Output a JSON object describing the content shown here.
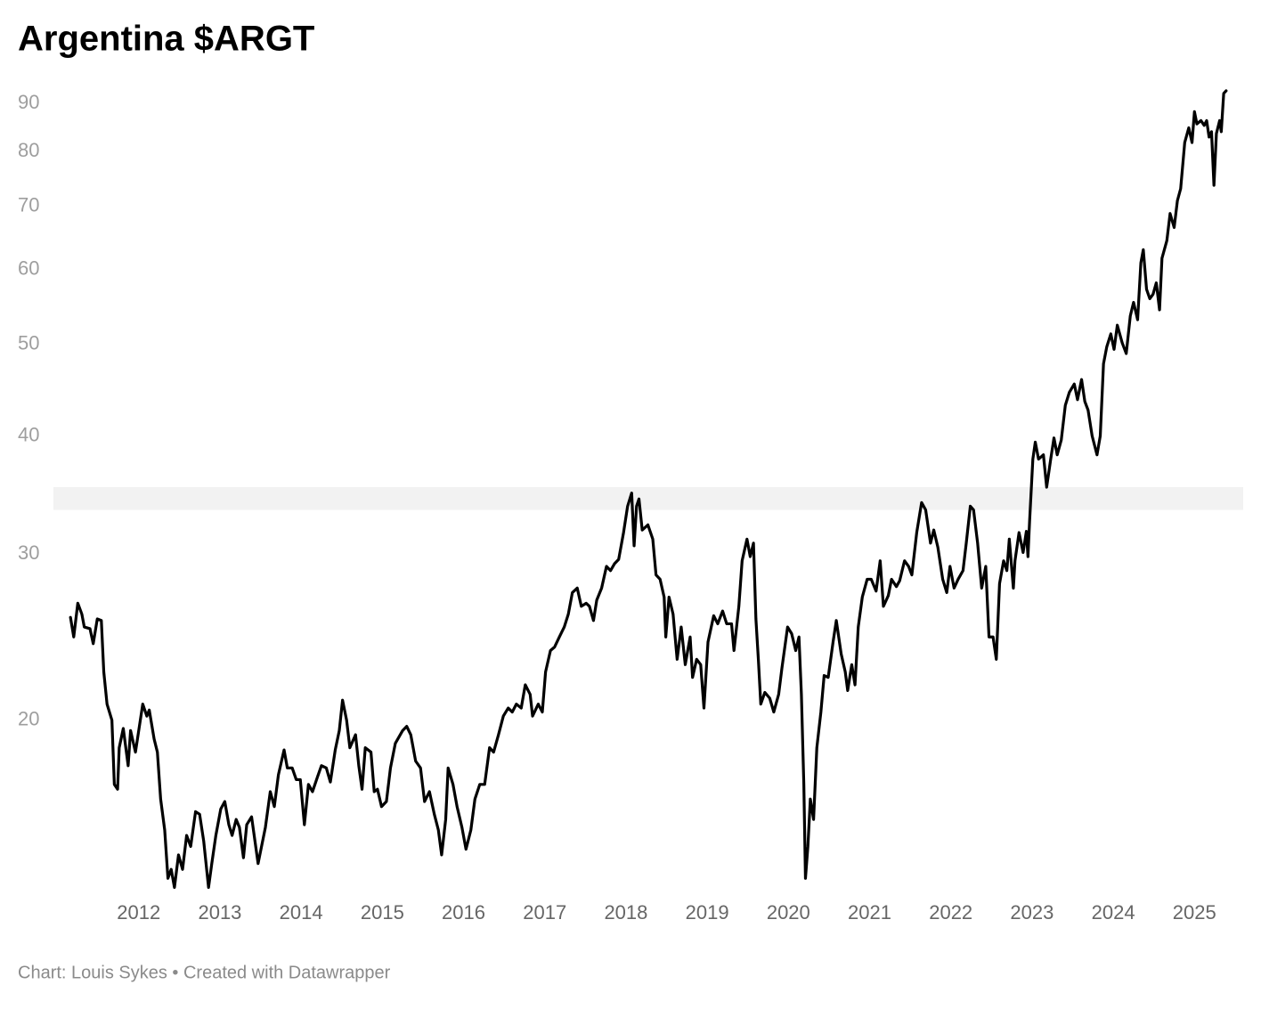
{
  "chart_data": {
    "type": "line",
    "title": "Argentina $ARGT",
    "source": "Chart: Louis Sykes • Created with Datawrapper",
    "yscale": "log",
    "grid": false,
    "highlight_range": [
      33.4,
      35.3
    ],
    "highlight_color": "#f2f2f2",
    "xlim": [
      2010.95,
      2025.6
    ],
    "xticks": [
      2012,
      2013,
      2014,
      2015,
      2016,
      2017,
      2018,
      2019,
      2020,
      2021,
      2022,
      2023,
      2024,
      2025
    ],
    "ylim": [
      13.2,
      93.2
    ],
    "yticks": [
      20,
      30,
      40,
      50,
      60,
      70,
      80,
      90
    ],
    "x": [
      2011.16,
      2011.2,
      2011.25,
      2011.3,
      2011.33,
      2011.4,
      2011.44,
      2011.49,
      2011.54,
      2011.57,
      2011.61,
      2011.67,
      2011.7,
      2011.74,
      2011.76,
      2011.81,
      2011.87,
      2011.9,
      2011.96,
      2012.05,
      2012.1,
      2012.13,
      2012.19,
      2012.23,
      2012.27,
      2012.32,
      2012.36,
      2012.4,
      2012.44,
      2012.49,
      2012.54,
      2012.59,
      2012.64,
      2012.7,
      2012.75,
      2012.8,
      2012.86,
      2012.9,
      2012.95,
      2013.01,
      2013.06,
      2013.11,
      2013.15,
      2013.2,
      2013.24,
      2013.29,
      2013.33,
      2013.39,
      2013.47,
      2013.56,
      2013.62,
      2013.67,
      2013.72,
      2013.79,
      2013.83,
      2013.89,
      2013.94,
      2013.99,
      2014.04,
      2014.09,
      2014.14,
      2014.2,
      2014.25,
      2014.31,
      2014.36,
      2014.42,
      2014.47,
      2014.51,
      2014.56,
      2014.6,
      2014.67,
      2014.71,
      2014.75,
      2014.79,
      2014.86,
      2014.9,
      2014.94,
      2014.99,
      2015.05,
      2015.1,
      2015.16,
      2015.25,
      2015.3,
      2015.35,
      2015.41,
      2015.47,
      2015.52,
      2015.58,
      2015.64,
      2015.69,
      2015.73,
      2015.78,
      2015.81,
      2015.87,
      2015.92,
      2015.98,
      2016.03,
      2016.09,
      2016.14,
      2016.2,
      2016.26,
      2016.32,
      2016.37,
      2016.43,
      2016.49,
      2016.55,
      2016.6,
      2016.65,
      2016.71,
      2016.76,
      2016.82,
      2016.85,
      2016.92,
      2016.97,
      2017.01,
      2017.07,
      2017.12,
      2017.18,
      2017.24,
      2017.29,
      2017.34,
      2017.4,
      2017.45,
      2017.51,
      2017.55,
      2017.6,
      2017.64,
      2017.7,
      2017.76,
      2017.81,
      2017.86,
      2017.91,
      2017.97,
      2018.02,
      2018.07,
      2018.1,
      2018.13,
      2018.16,
      2018.2,
      2018.27,
      2018.33,
      2018.37,
      2018.42,
      2018.47,
      2018.49,
      2018.53,
      2018.58,
      2018.63,
      2018.68,
      2018.73,
      2018.79,
      2018.82,
      2018.87,
      2018.92,
      2018.96,
      2019.01,
      2019.08,
      2019.13,
      2019.19,
      2019.24,
      2019.3,
      2019.33,
      2019.39,
      2019.43,
      2019.49,
      2019.53,
      2019.57,
      2019.6,
      2019.63,
      2019.66,
      2019.71,
      2019.77,
      2019.82,
      2019.88,
      2019.92,
      2019.99,
      2020.04,
      2020.09,
      2020.13,
      2020.16,
      2020.19,
      2020.21,
      2020.24,
      2020.27,
      2020.31,
      2020.35,
      2020.4,
      2020.44,
      2020.49,
      2020.55,
      2020.59,
      2020.65,
      2020.7,
      2020.73,
      2020.78,
      2020.82,
      2020.86,
      2020.91,
      2020.97,
      2021.02,
      2021.08,
      2021.13,
      2021.17,
      2021.23,
      2021.27,
      2021.33,
      2021.37,
      2021.43,
      2021.48,
      2021.52,
      2021.58,
      2021.64,
      2021.69,
      2021.75,
      2021.79,
      2021.84,
      2021.9,
      2021.95,
      2021.99,
      2022.04,
      2022.09,
      2022.15,
      2022.19,
      2022.24,
      2022.28,
      2022.33,
      2022.38,
      2022.43,
      2022.47,
      2022.52,
      2022.56,
      2022.6,
      2022.65,
      2022.69,
      2022.72,
      2022.77,
      2022.79,
      2022.84,
      2022.89,
      2022.93,
      2022.95,
      2022.97,
      2023.01,
      2023.04,
      2023.08,
      2023.14,
      2023.18,
      2023.23,
      2023.27,
      2023.31,
      2023.36,
      2023.41,
      2023.46,
      2023.52,
      2023.56,
      2023.61,
      2023.65,
      2023.69,
      2023.74,
      2023.8,
      2023.84,
      2023.88,
      2023.92,
      2023.97,
      2024.01,
      2024.05,
      2024.11,
      2024.16,
      2024.21,
      2024.25,
      2024.3,
      2024.34,
      2024.37,
      2024.41,
      2024.45,
      2024.49,
      2024.53,
      2024.57,
      2024.6,
      2024.66,
      2024.7,
      2024.75,
      2024.79,
      2024.83,
      2024.88,
      2024.93,
      2024.97,
      2025.0,
      2025.03,
      2025.08,
      2025.12,
      2025.15,
      2025.18,
      2025.21,
      2025.24,
      2025.27,
      2025.31,
      2025.33,
      2025.36,
      2025.39
    ],
    "series": [
      {
        "color": "#000000",
        "values": [
          25.7,
          24.5,
          26.6,
          25.9,
          25.1,
          25.0,
          24.1,
          25.6,
          25.5,
          22.5,
          20.8,
          20.0,
          17.1,
          16.9,
          18.7,
          19.6,
          17.9,
          19.5,
          18.5,
          20.8,
          20.2,
          20.5,
          19.1,
          18.5,
          16.5,
          15.3,
          13.6,
          13.9,
          13.3,
          14.4,
          13.9,
          15.1,
          14.7,
          16.0,
          15.9,
          14.9,
          13.3,
          14.1,
          15.1,
          16.1,
          16.4,
          15.5,
          15.1,
          15.7,
          15.4,
          14.3,
          15.5,
          15.8,
          14.1,
          15.4,
          16.8,
          16.2,
          17.5,
          18.6,
          17.8,
          17.8,
          17.3,
          17.3,
          15.5,
          17.1,
          16.8,
          17.4,
          17.9,
          17.8,
          17.2,
          18.6,
          19.5,
          21.0,
          20.0,
          18.7,
          19.3,
          17.9,
          16.9,
          18.7,
          18.5,
          16.8,
          16.9,
          16.2,
          16.4,
          17.8,
          18.9,
          19.5,
          19.7,
          19.3,
          18.1,
          17.8,
          16.4,
          16.8,
          15.9,
          15.3,
          14.4,
          15.7,
          17.8,
          17.1,
          16.2,
          15.4,
          14.6,
          15.3,
          16.5,
          17.1,
          17.1,
          18.7,
          18.5,
          19.3,
          20.2,
          20.6,
          20.4,
          20.8,
          20.6,
          21.8,
          21.3,
          20.2,
          20.8,
          20.4,
          22.5,
          23.7,
          23.9,
          24.5,
          25.1,
          25.9,
          27.3,
          27.6,
          26.4,
          26.6,
          26.4,
          25.5,
          26.8,
          27.6,
          29.1,
          28.8,
          29.3,
          29.6,
          31.6,
          33.7,
          34.8,
          30.6,
          33.7,
          34.3,
          31.8,
          32.2,
          31.1,
          28.5,
          28.2,
          27.0,
          24.5,
          27.0,
          25.9,
          23.2,
          25.1,
          22.9,
          24.5,
          22.2,
          23.2,
          22.9,
          20.6,
          24.2,
          25.8,
          25.3,
          26.1,
          25.3,
          25.3,
          23.7,
          26.4,
          29.5,
          31.1,
          29.8,
          30.8,
          25.6,
          23.2,
          20.8,
          21.4,
          21.1,
          20.4,
          21.3,
          22.7,
          25.1,
          24.7,
          23.7,
          24.5,
          21.3,
          17.1,
          13.6,
          14.7,
          16.5,
          15.7,
          18.7,
          20.4,
          22.3,
          22.2,
          24.2,
          25.5,
          23.5,
          22.5,
          21.5,
          22.9,
          21.8,
          25.1,
          27.0,
          28.2,
          28.2,
          27.4,
          29.5,
          26.4,
          27.1,
          28.2,
          27.7,
          28.1,
          29.5,
          29.1,
          28.5,
          31.6,
          34.0,
          33.4,
          30.8,
          31.8,
          30.5,
          28.2,
          27.3,
          29.1,
          27.6,
          28.2,
          28.8,
          30.8,
          33.7,
          33.4,
          30.8,
          27.6,
          29.1,
          24.5,
          24.5,
          23.2,
          27.9,
          29.5,
          28.8,
          31.1,
          27.6,
          29.5,
          31.6,
          30.1,
          31.7,
          29.8,
          32.5,
          37.8,
          39.4,
          37.8,
          38.2,
          35.3,
          37.8,
          39.8,
          38.2,
          39.6,
          43.1,
          44.5,
          45.4,
          43.7,
          45.9,
          43.5,
          42.6,
          40.0,
          38.2,
          40.0,
          47.7,
          49.7,
          51.3,
          49.4,
          52.4,
          50.2,
          48.9,
          53.6,
          55.4,
          53.1,
          61.0,
          63.0,
          57.2,
          55.9,
          56.5,
          58.1,
          54.4,
          61.7,
          64.4,
          68.8,
          66.5,
          71.0,
          73.1,
          81.8,
          84.8,
          81.8,
          88.2,
          85.6,
          86.3,
          85.3,
          86.3,
          82.9,
          84.0,
          73.7,
          83.6,
          86.3,
          84.0,
          92.2,
          92.8
        ]
      }
    ]
  }
}
